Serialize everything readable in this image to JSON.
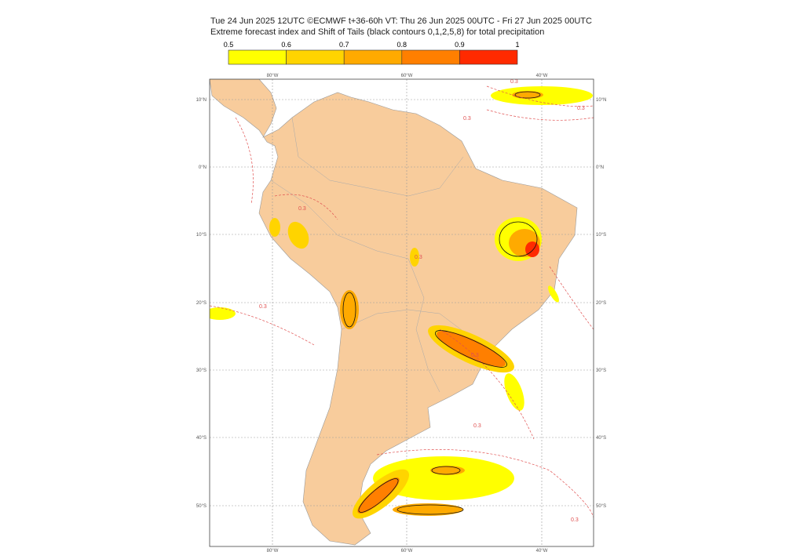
{
  "header": {
    "line1": "Tue 24 Jun 2025 12UTC ©ECMWF t+36-60h  VT: Thu 26 Jun 2025 00UTC - Fri 27 Jun 2025 00UTC",
    "line2": "Extreme forecast index and Shift of Tails (black contours 0,1,2,5,8) for total precipitation"
  },
  "legend": {
    "ticks": [
      "0.5",
      "0.6",
      "0.7",
      "0.8",
      "0.9",
      "1"
    ],
    "colors": [
      "#ffff00",
      "#ffd400",
      "#ffaa00",
      "#ff7f00",
      "#ff2a00"
    ]
  },
  "map": {
    "longitudes": [
      "80°W",
      "60°W",
      "40°W"
    ],
    "latitudes": [
      "10°N",
      "0°N",
      "10°S",
      "20°S",
      "30°S",
      "40°S",
      "50°S"
    ],
    "contour_label": "0.3"
  }
}
